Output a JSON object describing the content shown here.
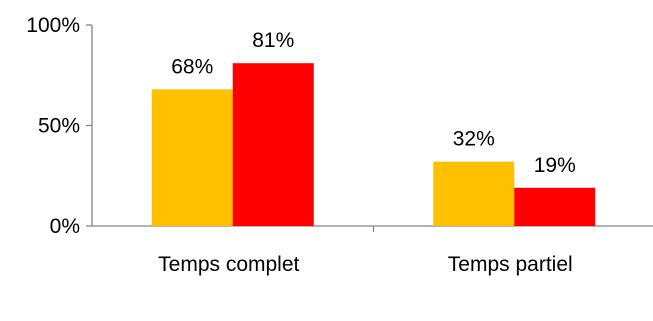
{
  "chart_data": {
    "type": "bar",
    "categories": [
      "Temps complet",
      "Temps partiel"
    ],
    "series": [
      {
        "values": [
          68,
          32
        ],
        "color": "#FFC000"
      },
      {
        "values": [
          81,
          19
        ],
        "color": "#FF0000"
      }
    ],
    "data_labels": [
      [
        "68%",
        "32%"
      ],
      [
        "81%",
        "19%"
      ]
    ],
    "y_ticks": [
      {
        "value": 0,
        "label": "0%"
      },
      {
        "value": 50,
        "label": "50%"
      },
      {
        "value": 100,
        "label": "100%"
      }
    ],
    "ylim": [
      0,
      100
    ],
    "grid": false,
    "legend": "none",
    "axis_color": "#868686"
  }
}
